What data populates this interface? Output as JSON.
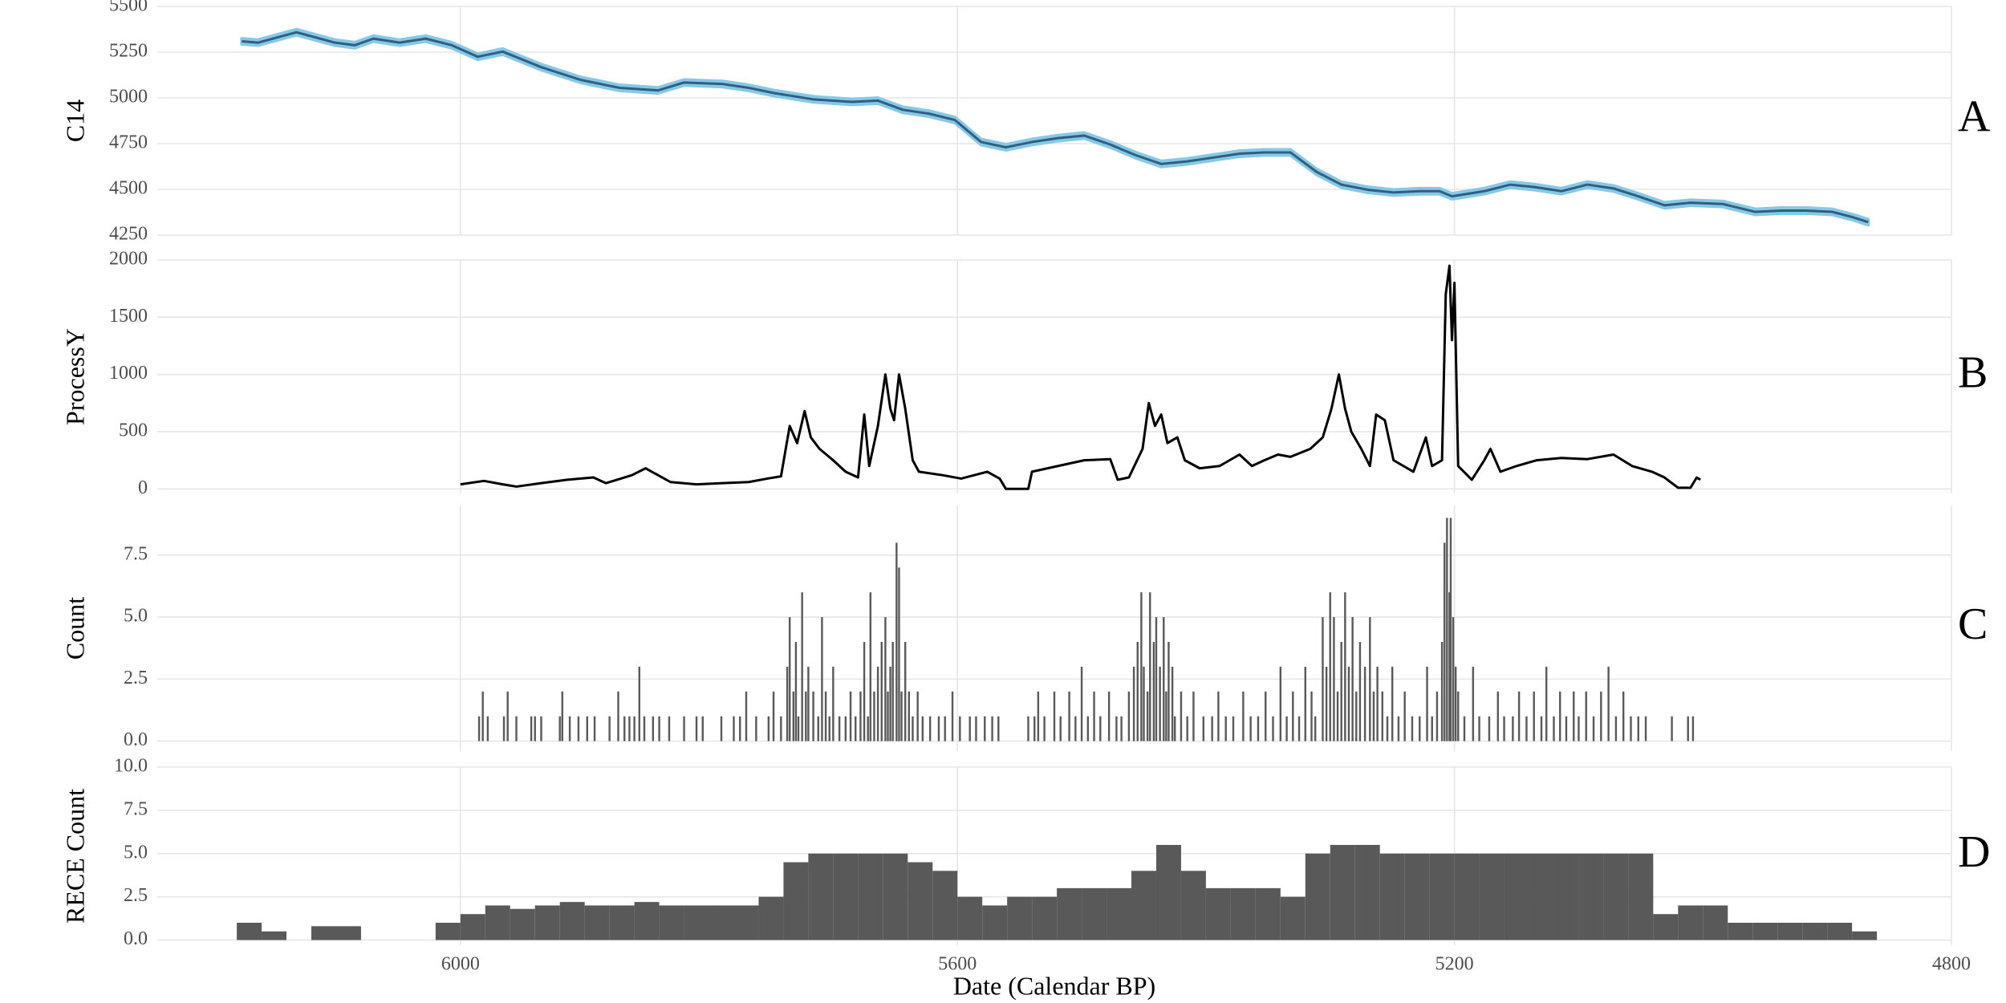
{
  "chart_data": [
    {
      "type": "line",
      "ylabel": "C14",
      "panel_label": "A",
      "color": "#2f5f80",
      "band_color": "#87c8e6",
      "error": 15,
      "xlim": [
        6244,
        4800
      ],
      "xticks": [
        6000,
        5600,
        5200,
        4800
      ],
      "ylim": [
        4250,
        5500
      ],
      "yticks": [
        4250,
        4500,
        4750,
        5000,
        5250,
        5500
      ],
      "grid": true,
      "x": [
        6176,
        6163,
        6132,
        6101,
        6085,
        6070,
        6049,
        6028,
        6007,
        5986,
        5966,
        5935,
        5903,
        5872,
        5841,
        5820,
        5789,
        5768,
        5748,
        5716,
        5685,
        5664,
        5644,
        5623,
        5602,
        5581,
        5561,
        5540,
        5519,
        5498,
        5477,
        5457,
        5436,
        5415,
        5394,
        5373,
        5353,
        5332,
        5311,
        5291,
        5270,
        5249,
        5228,
        5212,
        5202,
        5176,
        5155,
        5135,
        5114,
        5093,
        5072,
        5052,
        5031,
        5010,
        4984,
        4958,
        4937,
        4917,
        4896,
        4880,
        4867
      ],
      "values": [
        5309,
        5302,
        5359,
        5302,
        5288,
        5324,
        5302,
        5324,
        5288,
        5225,
        5253,
        5168,
        5098,
        5055,
        5041,
        5084,
        5076,
        5055,
        5027,
        4992,
        4978,
        4985,
        4935,
        4914,
        4879,
        4759,
        4730,
        4759,
        4780,
        4794,
        4745,
        4688,
        4639,
        4653,
        4674,
        4695,
        4702,
        4702,
        4596,
        4526,
        4498,
        4483,
        4490,
        4490,
        4462,
        4490,
        4526,
        4512,
        4490,
        4526,
        4505,
        4462,
        4413,
        4427,
        4420,
        4377,
        4384,
        4384,
        4377,
        4349,
        4321
      ]
    },
    {
      "type": "line",
      "ylabel": "ProcessY",
      "panel_label": "B",
      "color": "#000000",
      "xlim": [
        6244,
        4800
      ],
      "xticks": [
        6000,
        5600,
        5200,
        4800
      ],
      "ylim": [
        -40,
        2000
      ],
      "yticks": [
        0,
        500,
        1000,
        1500,
        2000
      ],
      "grid": true,
      "x": [
        6000,
        5981,
        5966,
        5955,
        5935,
        5914,
        5893,
        5883,
        5862,
        5851,
        5846,
        5831,
        5810,
        5789,
        5768,
        5753,
        5742,
        5735,
        5729,
        5723,
        5718,
        5711,
        5700,
        5690,
        5680,
        5675,
        5671,
        5664,
        5658,
        5654,
        5651,
        5647,
        5642,
        5636,
        5631,
        5612,
        5597,
        5576,
        5566,
        5561,
        5543,
        5540,
        5519,
        5498,
        5477,
        5471,
        5462,
        5451,
        5446,
        5441,
        5436,
        5431,
        5423,
        5417,
        5405,
        5389,
        5373,
        5363,
        5353,
        5342,
        5332,
        5316,
        5306,
        5299,
        5293,
        5288,
        5283,
        5275,
        5268,
        5263,
        5256,
        5249,
        5233,
        5223,
        5218,
        5210,
        5207,
        5204,
        5202,
        5200,
        5197,
        5186,
        5176,
        5171,
        5163,
        5150,
        5134,
        5114,
        5093,
        5072,
        5057,
        5041,
        5031,
        5020,
        5010,
        5005,
        5002
      ],
      "values": [
        40,
        70,
        40,
        20,
        50,
        80,
        100,
        50,
        120,
        180,
        150,
        60,
        40,
        50,
        60,
        90,
        110,
        550,
        400,
        680,
        450,
        350,
        250,
        150,
        100,
        650,
        200,
        550,
        1000,
        700,
        600,
        1000,
        700,
        250,
        150,
        120,
        90,
        150,
        90,
        0,
        0,
        150,
        200,
        250,
        260,
        80,
        100,
        350,
        750,
        550,
        650,
        400,
        450,
        250,
        180,
        200,
        300,
        200,
        250,
        300,
        280,
        350,
        450,
        700,
        1000,
        700,
        500,
        350,
        200,
        650,
        600,
        250,
        150,
        450,
        200,
        250,
        1700,
        1950,
        1300,
        1800,
        200,
        80,
        250,
        350,
        150,
        200,
        250,
        270,
        260,
        300,
        200,
        150,
        100,
        10,
        10,
        100,
        80
      ]
    },
    {
      "type": "bar",
      "ylabel": "Count",
      "panel_label": "C",
      "color": "#595959",
      "xlim": [
        6244,
        4800
      ],
      "xticks": [
        6000,
        5600,
        5200,
        4800
      ],
      "ylim": [
        -0.4,
        9.5
      ],
      "yticks": [
        {
          "value": 0,
          "label": "0.0"
        },
        2.5,
        {
          "value": 5,
          "label": "5.0"
        },
        7.5
      ],
      "grid": true,
      "x": [
        5985,
        5982,
        5978,
        5965,
        5962,
        5955,
        5943,
        5940,
        5935,
        5920,
        5918,
        5912,
        5905,
        5898,
        5892,
        5880,
        5873,
        5868,
        5864,
        5860,
        5856,
        5852,
        5845,
        5840,
        5832,
        5820,
        5810,
        5805,
        5790,
        5780,
        5775,
        5770,
        5762,
        5752,
        5748,
        5742,
        5737,
        5735,
        5732,
        5730,
        5728,
        5725,
        5722,
        5720,
        5716,
        5712,
        5709,
        5706,
        5703,
        5700,
        5695,
        5690,
        5686,
        5682,
        5678,
        5675,
        5672,
        5670,
        5667,
        5664,
        5661,
        5658,
        5656,
        5654,
        5652,
        5649,
        5647,
        5645,
        5642,
        5639,
        5636,
        5632,
        5628,
        5622,
        5615,
        5610,
        5604,
        5598,
        5590,
        5585,
        5578,
        5572,
        5567,
        5543,
        5538,
        5535,
        5530,
        5522,
        5517,
        5510,
        5505,
        5500,
        5495,
        5490,
        5485,
        5478,
        5472,
        5468,
        5462,
        5458,
        5455,
        5452,
        5450,
        5447,
        5445,
        5442,
        5440,
        5437,
        5434,
        5432,
        5430,
        5427,
        5425,
        5420,
        5415,
        5410,
        5402,
        5395,
        5390,
        5384,
        5378,
        5370,
        5364,
        5358,
        5352,
        5346,
        5340,
        5335,
        5330,
        5325,
        5320,
        5315,
        5312,
        5306,
        5303,
        5300,
        5297,
        5294,
        5291,
        5288,
        5285,
        5282,
        5279,
        5276,
        5272,
        5268,
        5265,
        5262,
        5258,
        5254,
        5250,
        5245,
        5240,
        5234,
        5228,
        5222,
        5218,
        5214,
        5210,
        5208,
        5206,
        5204,
        5203,
        5201,
        5199,
        5197,
        5192,
        5185,
        5180,
        5172,
        5165,
        5160,
        5153,
        5148,
        5142,
        5136,
        5130,
        5126,
        5120,
        5115,
        5110,
        5104,
        5100,
        5094,
        5088,
        5082,
        5076,
        5070,
        5064,
        5058,
        5052,
        5046,
        5025,
        5012,
        5008
      ],
      "values": [
        1,
        2,
        1,
        1,
        2,
        1,
        1,
        1,
        1,
        1,
        2,
        1,
        1,
        1,
        1,
        1,
        2,
        1,
        1,
        1,
        3,
        1,
        1,
        1,
        1,
        1,
        1,
        1,
        1,
        1,
        1,
        2,
        1,
        1,
        2,
        1,
        3,
        5,
        2,
        4,
        1,
        6,
        2,
        3,
        2,
        1,
        5,
        2,
        1,
        3,
        1,
        1,
        2,
        1,
        2,
        4,
        1,
        6,
        2,
        3,
        4,
        5,
        2,
        3,
        4,
        8,
        7,
        2,
        4,
        2,
        1,
        2,
        1,
        1,
        1,
        1,
        2,
        1,
        1,
        1,
        1,
        1,
        1,
        1,
        1,
        2,
        1,
        2,
        1,
        2,
        1,
        3,
        1,
        2,
        1,
        2,
        1,
        1,
        2,
        3,
        4,
        6,
        3,
        2,
        6,
        4,
        5,
        3,
        5,
        2,
        4,
        3,
        1,
        2,
        1,
        2,
        1,
        1,
        2,
        1,
        1,
        2,
        1,
        1,
        2,
        1,
        3,
        1,
        2,
        1,
        3,
        2,
        1,
        5,
        3,
        6,
        5,
        2,
        4,
        6,
        3,
        5,
        2,
        4,
        3,
        5,
        2,
        3,
        2,
        1,
        3,
        1,
        2,
        1,
        1,
        3,
        1,
        2,
        4,
        8,
        9,
        6,
        9,
        5,
        3,
        2,
        1,
        3,
        1,
        1,
        2,
        1,
        1,
        2,
        1,
        2,
        1,
        3,
        1,
        2,
        1,
        2,
        1,
        2,
        1,
        2,
        3,
        1,
        2,
        1,
        1,
        1,
        1,
        1,
        1
      ]
    },
    {
      "type": "histogram",
      "ylabel": "RECE Count",
      "panel_label": "D",
      "color": "#595959",
      "xlabel": "Date (Calendar BP)",
      "xlim": [
        6244,
        4800
      ],
      "xticks": [
        6000,
        5600,
        5200,
        4800
      ],
      "ylim": [
        -0.3,
        10
      ],
      "yticks": [
        {
          "value": 0,
          "label": "0.0"
        },
        2.5,
        {
          "value": 5,
          "label": "5.0"
        },
        7.5,
        {
          "value": 10,
          "label": "10.0"
        }
      ],
      "grid": true,
      "bins": [
        6180,
        6160,
        6140,
        6120,
        6100,
        6080,
        6060,
        6040,
        6020,
        6000,
        5980,
        5960,
        5940,
        5920,
        5900,
        5880,
        5860,
        5840,
        5820,
        5800,
        5780,
        5760,
        5740,
        5720,
        5700,
        5680,
        5660,
        5640,
        5620,
        5600,
        5580,
        5560,
        5540,
        5520,
        5500,
        5480,
        5460,
        5440,
        5420,
        5400,
        5380,
        5360,
        5340,
        5320,
        5300,
        5280,
        5260,
        5240,
        5220,
        5200,
        5180,
        5160,
        5140,
        5120,
        5100,
        5080,
        5060,
        5040,
        5020,
        5000,
        4980,
        4960,
        4940,
        4920,
        4900,
        4880,
        4860
      ],
      "values": [
        1,
        0.5,
        0,
        0.8,
        0.8,
        0,
        0,
        0,
        1,
        1.5,
        2,
        1.8,
        2,
        2.2,
        2,
        2,
        2.2,
        2,
        2,
        2,
        2,
        2.5,
        4.5,
        5,
        5,
        5,
        5,
        4.5,
        4,
        2.5,
        2,
        2.5,
        2.5,
        3,
        3,
        3,
        4,
        5.5,
        4,
        3,
        3,
        3,
        2.5,
        5,
        5.5,
        5.5,
        5,
        5,
        5,
        5,
        5,
        5,
        5,
        5,
        5,
        5,
        5,
        1.5,
        2,
        2,
        1,
        1,
        1,
        1,
        1,
        0.5
      ]
    }
  ]
}
